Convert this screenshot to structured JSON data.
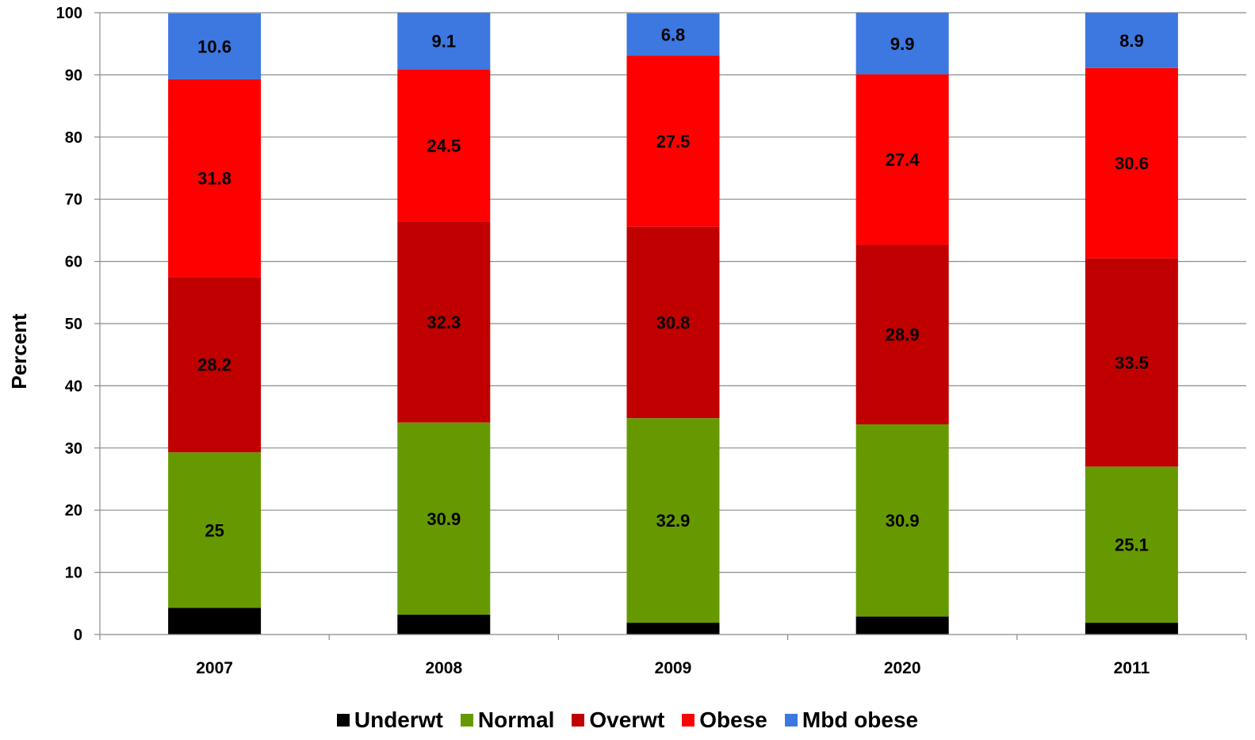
{
  "chart_data": {
    "type": "bar",
    "stacked": true,
    "categories": [
      "2007",
      "2008",
      "2009",
      "2020",
      "2011"
    ],
    "series": [
      {
        "name": "Underwt",
        "color": "#000000",
        "values": [
          4.3,
          3.2,
          1.9,
          2.9,
          1.9
        ]
      },
      {
        "name": "Normal",
        "color": "#669900",
        "values": [
          25,
          30.9,
          32.9,
          30.9,
          25.1
        ]
      },
      {
        "name": "Overwt",
        "color": "#C00000",
        "values": [
          28.2,
          32.3,
          30.8,
          28.9,
          33.5
        ]
      },
      {
        "name": "Obese",
        "color": "#FF0000",
        "values": [
          31.8,
          24.5,
          27.5,
          27.4,
          30.6
        ]
      },
      {
        "name": "Mbd obese",
        "color": "#3C78E0",
        "values": [
          10.6,
          9.1,
          6.8,
          9.9,
          8.9
        ]
      }
    ],
    "labeled_series": [
      "Normal",
      "Overwt",
      "Obese",
      "Mbd obese"
    ],
    "xlabel": "",
    "ylabel": "Percent",
    "ylim": [
      0,
      100
    ],
    "yticks": [
      0,
      10,
      20,
      30,
      40,
      50,
      60,
      70,
      80,
      90,
      100
    ],
    "grid": true,
    "legend_position": "bottom"
  }
}
